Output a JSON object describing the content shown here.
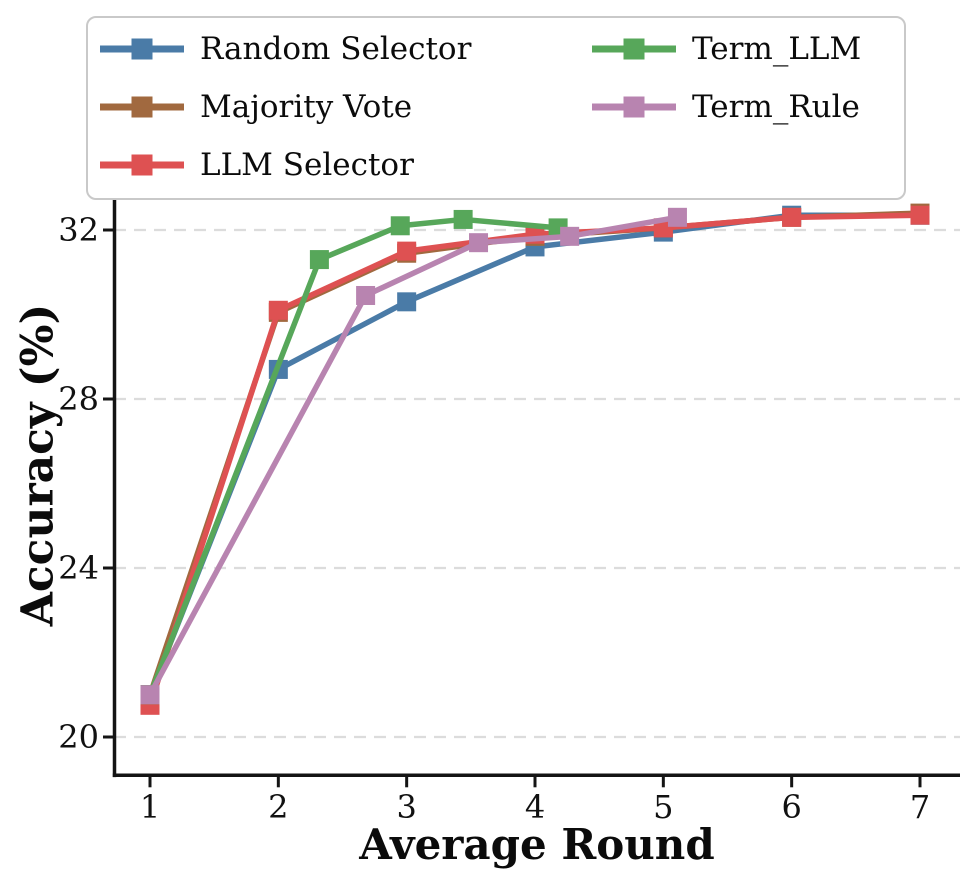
{
  "chart_data": {
    "type": "line",
    "title": "",
    "xlabel": "Average Round",
    "ylabel": "Accuracy (%)",
    "xticks": [
      1,
      2,
      3,
      4,
      5,
      6,
      7
    ],
    "yticks": [
      20,
      24,
      28,
      32
    ],
    "xlim": [
      0.73,
      7.31
    ],
    "ylim": [
      19.1,
      32.8
    ],
    "grid": {
      "axis": "y",
      "style": "dashed",
      "color": "#dcdcdc"
    },
    "marker": "square",
    "legend": {
      "position": "upper left",
      "ncol": 2,
      "columns": [
        [
          0,
          1,
          2
        ],
        [
          3,
          4
        ]
      ],
      "border_color": "#c9c9c9",
      "background": "#ffffff"
    },
    "series": [
      {
        "name": "Random Selector",
        "color": "#4a7ba7",
        "x": [
          1,
          2,
          3,
          4,
          5,
          6,
          7
        ],
        "y": [
          21.0,
          28.7,
          30.3,
          31.6,
          31.95,
          32.35,
          32.35
        ]
      },
      {
        "name": "Majority Vote",
        "color": "#a1693f",
        "x": [
          1,
          2,
          3,
          4,
          5,
          6,
          7
        ],
        "y": [
          21.0,
          30.05,
          31.45,
          31.85,
          32.05,
          32.3,
          32.4
        ]
      },
      {
        "name": "LLM Selector",
        "color": "#de5152",
        "x": [
          1,
          2,
          3,
          4,
          5,
          6,
          7
        ],
        "y": [
          20.75,
          30.1,
          31.5,
          31.9,
          32.05,
          32.3,
          32.35
        ]
      },
      {
        "name": "Term_LLM",
        "color": "#57a75a",
        "x": [
          1,
          2.32,
          2.95,
          3.44,
          4.18
        ],
        "y": [
          21.0,
          31.3,
          32.1,
          32.25,
          32.05
        ]
      },
      {
        "name": "Term_Rule",
        "color": "#b884b0",
        "x": [
          1,
          2.68,
          3.56,
          4.27,
          5.11
        ],
        "y": [
          21.0,
          30.45,
          31.7,
          31.85,
          32.3
        ]
      }
    ]
  },
  "colors": {
    "background": "#ffffff",
    "spine": "#141414",
    "tick_label": "#111111"
  }
}
